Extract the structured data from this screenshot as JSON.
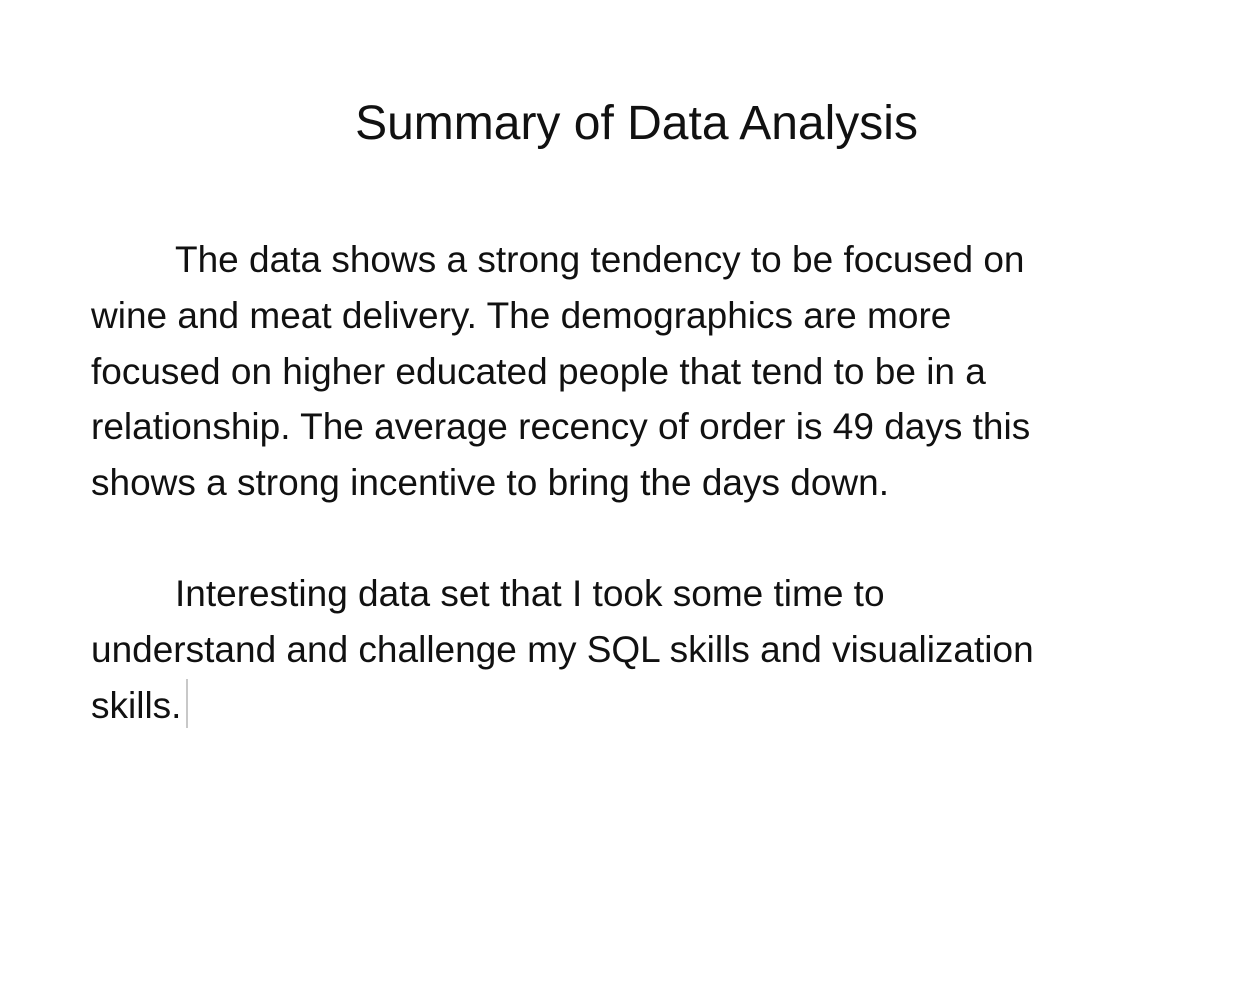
{
  "document": {
    "title": "Summary of Data Analysis",
    "paragraphs": [
      {
        "lines": [
          "The data shows a strong tendency to be focused on",
          "wine and meat delivery.  The demographics are more",
          "focused on higher educated people that tend to be in a",
          "relationship.  The average recency of order is 49 days this",
          "shows a strong incentive to bring the days down."
        ]
      },
      {
        "lines": [
          "Interesting data set that I took some time to",
          "understand and challenge my SQL skills and visualization",
          "skills."
        ]
      }
    ]
  }
}
